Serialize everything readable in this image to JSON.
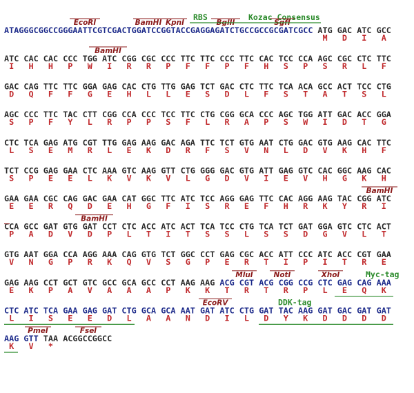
{
  "rows": [
    {
      "dna": [
        "ATAGGGCGGCCGGGAATTCGTCGACTGGATCCGGTACCGAGGAGATCTGCCGCCGCGATCGCC",
        "ATG",
        "GAC",
        "ATC",
        "GCC"
      ],
      "aa": [
        null,
        "M",
        "D",
        "I",
        "A"
      ],
      "blue": [
        0
      ],
      "sites": [
        "EcoRI",
        "BamHI",
        "KpnI",
        "RBS",
        "BglII",
        "Kozac Consensus",
        "SgfI"
      ]
    },
    {
      "dna": [
        "ATC",
        "CAC",
        "CAC",
        "CCC",
        "TGG",
        "ATC",
        "CGG",
        "CGC",
        "CCC",
        "TTC",
        "TTC",
        "CCC",
        "TTC",
        "CAC",
        "TCC",
        "CCA",
        "AGC",
        "CGC",
        "CTC",
        "TTC"
      ],
      "aa": [
        "I",
        "H",
        "H",
        "P",
        "W",
        "I",
        "R",
        "R",
        "P",
        "F",
        "F",
        "P",
        "F",
        "H",
        "S",
        "P",
        "S",
        "R",
        "L",
        "F"
      ],
      "blue": [],
      "sites": [
        "BamHI"
      ]
    },
    {
      "dna": [
        "GAC",
        "CAG",
        "TTC",
        "TTC",
        "GGA",
        "GAG",
        "CAC",
        "CTG",
        "TTG",
        "GAG",
        "TCT",
        "GAC",
        "CTC",
        "TTC",
        "TCA",
        "ACA",
        "GCC",
        "ACT",
        "TCC",
        "CTG"
      ],
      "aa": [
        "D",
        "Q",
        "F",
        "F",
        "G",
        "E",
        "H",
        "L",
        "L",
        "E",
        "S",
        "D",
        "L",
        "F",
        "S",
        "T",
        "A",
        "T",
        "S",
        "L"
      ],
      "blue": [],
      "sites": []
    },
    {
      "dna": [
        "AGC",
        "CCC",
        "TTC",
        "TAC",
        "CTT",
        "CGG",
        "CCA",
        "CCC",
        "TCC",
        "TTC",
        "CTG",
        "CGG",
        "GCA",
        "CCC",
        "AGC",
        "TGG",
        "ATT",
        "GAC",
        "ACC",
        "GGA"
      ],
      "aa": [
        "S",
        "P",
        "F",
        "Y",
        "L",
        "R",
        "P",
        "P",
        "S",
        "F",
        "L",
        "R",
        "A",
        "P",
        "S",
        "W",
        "I",
        "D",
        "T",
        "G"
      ],
      "blue": [],
      "sites": []
    },
    {
      "dna": [
        "CTC",
        "TCA",
        "GAG",
        "ATG",
        "CGT",
        "TTG",
        "GAG",
        "AAG",
        "GAC",
        "AGA",
        "TTC",
        "TCT",
        "GTG",
        "AAT",
        "CTG",
        "GAC",
        "GTG",
        "AAG",
        "CAC",
        "TTC"
      ],
      "aa": [
        "L",
        "S",
        "E",
        "M",
        "R",
        "L",
        "E",
        "K",
        "D",
        "R",
        "F",
        "S",
        "V",
        "N",
        "L",
        "D",
        "V",
        "K",
        "H",
        "F"
      ],
      "blue": [],
      "sites": []
    },
    {
      "dna": [
        "TCT",
        "CCG",
        "GAG",
        "GAA",
        "CTC",
        "AAA",
        "GTC",
        "AAG",
        "GTT",
        "CTG",
        "GGG",
        "GAC",
        "GTG",
        "ATT",
        "GAG",
        "GTC",
        "CAC",
        "GGC",
        "AAG",
        "CAC"
      ],
      "aa": [
        "S",
        "P",
        "E",
        "E",
        "L",
        "K",
        "V",
        "K",
        "V",
        "L",
        "G",
        "D",
        "V",
        "I",
        "E",
        "V",
        "H",
        "G",
        "K",
        "H"
      ],
      "blue": [],
      "sites": []
    },
    {
      "dna": [
        "GAA",
        "GAA",
        "CGC",
        "CAG",
        "GAC",
        "GAA",
        "CAT",
        "GGC",
        "TTC",
        "ATC",
        "TCC",
        "AGG",
        "GAG",
        "TTC",
        "CAC",
        "AGG",
        "AAG",
        "TAC",
        "CGG",
        "ATC"
      ],
      "aa": [
        "E",
        "E",
        "R",
        "Q",
        "D",
        "E",
        "H",
        "G",
        "F",
        "I",
        "S",
        "R",
        "E",
        "F",
        "H",
        "R",
        "K",
        "Y",
        "R",
        "I"
      ],
      "blue": [],
      "sites": [
        "BamHI"
      ]
    },
    {
      "dna": [
        "CCA",
        "GCC",
        "GAT",
        "GTG",
        "GAT",
        "CCT",
        "CTC",
        "ACC",
        "ATC",
        "ACT",
        "TCA",
        "TCC",
        "CTG",
        "TCA",
        "TCT",
        "GAT",
        "GGA",
        "GTC",
        "CTC",
        "ACT"
      ],
      "aa": [
        "P",
        "A",
        "D",
        "V",
        "D",
        "P",
        "L",
        "T",
        "I",
        "T",
        "S",
        "S",
        "L",
        "S",
        "S",
        "D",
        "G",
        "V",
        "L",
        "T"
      ],
      "blue": [],
      "sites": [
        "BamHI"
      ]
    },
    {
      "dna": [
        "GTG",
        "AAT",
        "GGA",
        "CCA",
        "AGG",
        "AAA",
        "CAG",
        "GTG",
        "TCT",
        "GGC",
        "CCT",
        "GAG",
        "CGC",
        "ACC",
        "ATT",
        "CCC",
        "ATC",
        "ACC",
        "CGT",
        "GAA"
      ],
      "aa": [
        "V",
        "N",
        "G",
        "P",
        "R",
        "K",
        "Q",
        "V",
        "S",
        "G",
        "P",
        "E",
        "R",
        "T",
        "I",
        "P",
        "I",
        "T",
        "R",
        "E"
      ],
      "blue": [],
      "sites": []
    },
    {
      "dna": [
        "GAG",
        "AAG",
        "CCT",
        "GCT",
        "GTC",
        "GCC",
        "GCA",
        "GCC",
        "CCT",
        "AAG",
        "AAG",
        "ACG",
        "CGT",
        "ACG",
        "CGG",
        "CCG",
        "CTC",
        "GAG",
        "CAG",
        "AAA"
      ],
      "aa": [
        "E",
        "K",
        "P",
        "A",
        "V",
        "A",
        "A",
        "A",
        "P",
        "K",
        "K",
        "T",
        "R",
        "T",
        "R",
        "P",
        "L",
        "E",
        "Q",
        "K"
      ],
      "blue": [
        11,
        12,
        13,
        14,
        15,
        16,
        17,
        18,
        19
      ],
      "sites": [
        "MluI",
        "NotI",
        "XhoI",
        "Myc-tag"
      ]
    },
    {
      "dna": [
        "CTC",
        "ATC",
        "TCA",
        "GAA",
        "GAG",
        "GAT",
        "CTG",
        "GCA",
        "GCA",
        "AAT",
        "GAT",
        "ATC",
        "CTG",
        "GAT",
        "TAC",
        "AAG",
        "GAT",
        "GAC",
        "GAT",
        "GAT"
      ],
      "aa": [
        "L",
        "I",
        "S",
        "E",
        "E",
        "D",
        "L",
        "A",
        "A",
        "N",
        "D",
        "I",
        "L",
        "D",
        "Y",
        "K",
        "D",
        "D",
        "D",
        "D"
      ],
      "blue": [
        0,
        1,
        2,
        3,
        4,
        5,
        6,
        7,
        8,
        9,
        10,
        11,
        12,
        13,
        14,
        15,
        16,
        17,
        18,
        19
      ],
      "sites": [
        "EcoRV",
        "DDK-tag"
      ]
    },
    {
      "dna": [
        "AAG",
        "GTT",
        "TAA",
        "ACGGCCGGCC"
      ],
      "aa": [
        "K",
        "V",
        "*"
      ],
      "blue": [
        0,
        1
      ],
      "sites": [
        "PmeI",
        "FseI"
      ]
    }
  ]
}
